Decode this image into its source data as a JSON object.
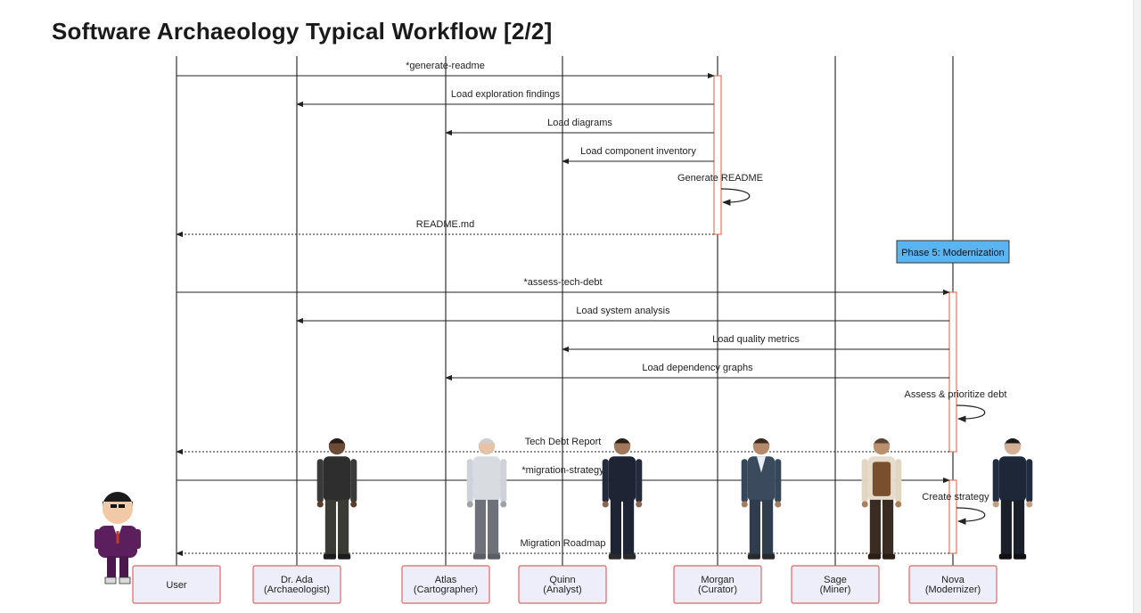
{
  "title": "Software Archaeology Typical Workflow [2/2]",
  "participants": [
    {
      "id": "user",
      "name": "User",
      "role": "",
      "avatar": "presenter-figure"
    },
    {
      "id": "ada",
      "name": "Dr. Ada",
      "role": "(Archaeologist)",
      "avatar": "archaeologist-figure"
    },
    {
      "id": "atlas",
      "name": "Atlas",
      "role": "(Cartographer)",
      "avatar": "cartographer-figure"
    },
    {
      "id": "quinn",
      "name": "Quinn",
      "role": "(Analyst)",
      "avatar": "analyst-figure"
    },
    {
      "id": "morgan",
      "name": "Morgan",
      "role": "(Curator)",
      "avatar": "curator-figure"
    },
    {
      "id": "sage",
      "name": "Sage",
      "role": "(Miner)",
      "avatar": "miner-figure"
    },
    {
      "id": "nova",
      "name": "Nova",
      "role": "(Modernizer)",
      "avatar": "modernizer-figure"
    }
  ],
  "messages": [
    {
      "from": "user",
      "to": "morgan",
      "label": "*generate-readme",
      "style": "solid"
    },
    {
      "from": "morgan",
      "to": "ada",
      "label": "Load exploration findings",
      "style": "solid"
    },
    {
      "from": "morgan",
      "to": "atlas",
      "label": "Load diagrams",
      "style": "solid"
    },
    {
      "from": "morgan",
      "to": "quinn",
      "label": "Load component inventory",
      "style": "solid"
    },
    {
      "from": "morgan",
      "to": "morgan",
      "label": "Generate README",
      "style": "self"
    },
    {
      "from": "morgan",
      "to": "user",
      "label": "README.md",
      "style": "dashed"
    },
    {
      "from": "user",
      "to": "nova",
      "label": "*assess-tech-debt",
      "style": "solid"
    },
    {
      "from": "nova",
      "to": "ada",
      "label": "Load system analysis",
      "style": "solid"
    },
    {
      "from": "nova",
      "to": "quinn",
      "label": "Load quality metrics",
      "style": "solid"
    },
    {
      "from": "nova",
      "to": "atlas",
      "label": "Load dependency graphs",
      "style": "solid"
    },
    {
      "from": "nova",
      "to": "nova",
      "label": "Assess & prioritize debt",
      "style": "self"
    },
    {
      "from": "nova",
      "to": "user",
      "label": "Tech Debt Report",
      "style": "dashed"
    },
    {
      "from": "user",
      "to": "nova",
      "label": "*migration-strategy",
      "style": "solid"
    },
    {
      "from": "nova",
      "to": "nova",
      "label": "Create strategy",
      "style": "self"
    },
    {
      "from": "nova",
      "to": "user",
      "label": "Migration Roadmap",
      "style": "dashed"
    }
  ],
  "note": {
    "label": "Phase 5: Modernization",
    "over": "nova"
  },
  "colors": {
    "lifeline": "#333333",
    "arrow": "#222222",
    "activation": "#e8735a",
    "participant_border": "#e06666",
    "participant_fill": "#eeeefa",
    "note_fill": "#5ab4f0",
    "note_border": "#333333"
  }
}
